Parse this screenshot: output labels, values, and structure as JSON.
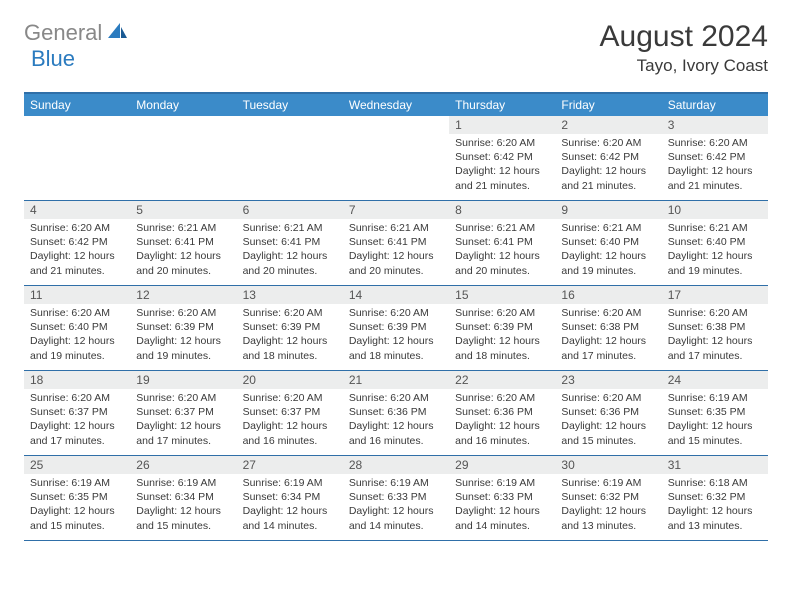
{
  "logo": {
    "text1": "General",
    "text2": "Blue"
  },
  "title": "August 2024",
  "location": "Tayo, Ivory Coast",
  "colors": {
    "header_bg": "#3b8bc9",
    "border": "#2f6fa8",
    "date_bg": "#eceded",
    "logo_gray": "#888888",
    "logo_blue": "#2b7bbf"
  },
  "dayNames": [
    "Sunday",
    "Monday",
    "Tuesday",
    "Wednesday",
    "Thursday",
    "Friday",
    "Saturday"
  ],
  "weeks": [
    [
      {
        "date": "",
        "lines": []
      },
      {
        "date": "",
        "lines": []
      },
      {
        "date": "",
        "lines": []
      },
      {
        "date": "",
        "lines": []
      },
      {
        "date": "1",
        "lines": [
          "Sunrise: 6:20 AM",
          "Sunset: 6:42 PM",
          "Daylight: 12 hours and 21 minutes."
        ]
      },
      {
        "date": "2",
        "lines": [
          "Sunrise: 6:20 AM",
          "Sunset: 6:42 PM",
          "Daylight: 12 hours and 21 minutes."
        ]
      },
      {
        "date": "3",
        "lines": [
          "Sunrise: 6:20 AM",
          "Sunset: 6:42 PM",
          "Daylight: 12 hours and 21 minutes."
        ]
      }
    ],
    [
      {
        "date": "4",
        "lines": [
          "Sunrise: 6:20 AM",
          "Sunset: 6:42 PM",
          "Daylight: 12 hours and 21 minutes."
        ]
      },
      {
        "date": "5",
        "lines": [
          "Sunrise: 6:21 AM",
          "Sunset: 6:41 PM",
          "Daylight: 12 hours and 20 minutes."
        ]
      },
      {
        "date": "6",
        "lines": [
          "Sunrise: 6:21 AM",
          "Sunset: 6:41 PM",
          "Daylight: 12 hours and 20 minutes."
        ]
      },
      {
        "date": "7",
        "lines": [
          "Sunrise: 6:21 AM",
          "Sunset: 6:41 PM",
          "Daylight: 12 hours and 20 minutes."
        ]
      },
      {
        "date": "8",
        "lines": [
          "Sunrise: 6:21 AM",
          "Sunset: 6:41 PM",
          "Daylight: 12 hours and 20 minutes."
        ]
      },
      {
        "date": "9",
        "lines": [
          "Sunrise: 6:21 AM",
          "Sunset: 6:40 PM",
          "Daylight: 12 hours and 19 minutes."
        ]
      },
      {
        "date": "10",
        "lines": [
          "Sunrise: 6:21 AM",
          "Sunset: 6:40 PM",
          "Daylight: 12 hours and 19 minutes."
        ]
      }
    ],
    [
      {
        "date": "11",
        "lines": [
          "Sunrise: 6:20 AM",
          "Sunset: 6:40 PM",
          "Daylight: 12 hours and 19 minutes."
        ]
      },
      {
        "date": "12",
        "lines": [
          "Sunrise: 6:20 AM",
          "Sunset: 6:39 PM",
          "Daylight: 12 hours and 19 minutes."
        ]
      },
      {
        "date": "13",
        "lines": [
          "Sunrise: 6:20 AM",
          "Sunset: 6:39 PM",
          "Daylight: 12 hours and 18 minutes."
        ]
      },
      {
        "date": "14",
        "lines": [
          "Sunrise: 6:20 AM",
          "Sunset: 6:39 PM",
          "Daylight: 12 hours and 18 minutes."
        ]
      },
      {
        "date": "15",
        "lines": [
          "Sunrise: 6:20 AM",
          "Sunset: 6:39 PM",
          "Daylight: 12 hours and 18 minutes."
        ]
      },
      {
        "date": "16",
        "lines": [
          "Sunrise: 6:20 AM",
          "Sunset: 6:38 PM",
          "Daylight: 12 hours and 17 minutes."
        ]
      },
      {
        "date": "17",
        "lines": [
          "Sunrise: 6:20 AM",
          "Sunset: 6:38 PM",
          "Daylight: 12 hours and 17 minutes."
        ]
      }
    ],
    [
      {
        "date": "18",
        "lines": [
          "Sunrise: 6:20 AM",
          "Sunset: 6:37 PM",
          "Daylight: 12 hours and 17 minutes."
        ]
      },
      {
        "date": "19",
        "lines": [
          "Sunrise: 6:20 AM",
          "Sunset: 6:37 PM",
          "Daylight: 12 hours and 17 minutes."
        ]
      },
      {
        "date": "20",
        "lines": [
          "Sunrise: 6:20 AM",
          "Sunset: 6:37 PM",
          "Daylight: 12 hours and 16 minutes."
        ]
      },
      {
        "date": "21",
        "lines": [
          "Sunrise: 6:20 AM",
          "Sunset: 6:36 PM",
          "Daylight: 12 hours and 16 minutes."
        ]
      },
      {
        "date": "22",
        "lines": [
          "Sunrise: 6:20 AM",
          "Sunset: 6:36 PM",
          "Daylight: 12 hours and 16 minutes."
        ]
      },
      {
        "date": "23",
        "lines": [
          "Sunrise: 6:20 AM",
          "Sunset: 6:36 PM",
          "Daylight: 12 hours and 15 minutes."
        ]
      },
      {
        "date": "24",
        "lines": [
          "Sunrise: 6:19 AM",
          "Sunset: 6:35 PM",
          "Daylight: 12 hours and 15 minutes."
        ]
      }
    ],
    [
      {
        "date": "25",
        "lines": [
          "Sunrise: 6:19 AM",
          "Sunset: 6:35 PM",
          "Daylight: 12 hours and 15 minutes."
        ]
      },
      {
        "date": "26",
        "lines": [
          "Sunrise: 6:19 AM",
          "Sunset: 6:34 PM",
          "Daylight: 12 hours and 15 minutes."
        ]
      },
      {
        "date": "27",
        "lines": [
          "Sunrise: 6:19 AM",
          "Sunset: 6:34 PM",
          "Daylight: 12 hours and 14 minutes."
        ]
      },
      {
        "date": "28",
        "lines": [
          "Sunrise: 6:19 AM",
          "Sunset: 6:33 PM",
          "Daylight: 12 hours and 14 minutes."
        ]
      },
      {
        "date": "29",
        "lines": [
          "Sunrise: 6:19 AM",
          "Sunset: 6:33 PM",
          "Daylight: 12 hours and 14 minutes."
        ]
      },
      {
        "date": "30",
        "lines": [
          "Sunrise: 6:19 AM",
          "Sunset: 6:32 PM",
          "Daylight: 12 hours and 13 minutes."
        ]
      },
      {
        "date": "31",
        "lines": [
          "Sunrise: 6:18 AM",
          "Sunset: 6:32 PM",
          "Daylight: 12 hours and 13 minutes."
        ]
      }
    ]
  ]
}
